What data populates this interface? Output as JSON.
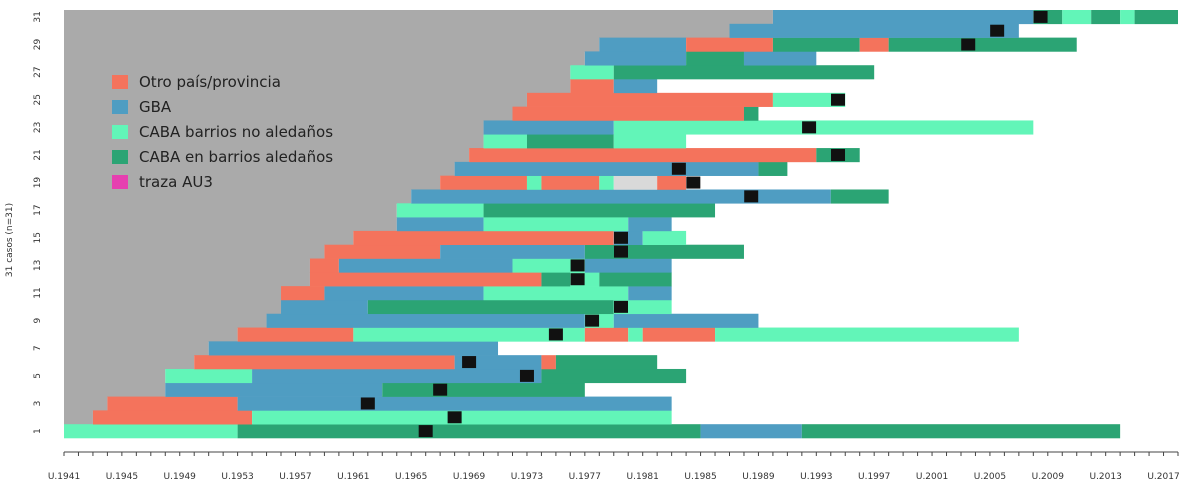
{
  "colors": {
    "background": "#aaaaaa",
    "otro": "#f4735c",
    "gba": "#4f9dc2",
    "caba_no_aled": "#62f5b8",
    "caba_aled": "#2ba474",
    "traza": "#e63fb0",
    "marker": "#111111",
    "unknown": "#d9d9d9"
  },
  "chart_data": {
    "type": "bar",
    "title": "",
    "xlabel": "",
    "ylabel": "31 casos (n=31)",
    "xlim": [
      1941,
      2018
    ],
    "ylim": [
      0.5,
      31.5
    ],
    "x_tick_labels": [
      "U.1941",
      "U.1945",
      "U.1949",
      "U.1953",
      "U.1957",
      "U.1961",
      "U.1965",
      "U.1969",
      "U.1973",
      "U.1977",
      "U.1981",
      "U.1985",
      "U.1989",
      "U.1993",
      "U.1997",
      "U.2001",
      "U.2005",
      "U.2009",
      "U.2013",
      "U.2017"
    ],
    "y_tick_labels": [
      "1",
      "3",
      "5",
      "7",
      "9",
      "11",
      "13",
      "15",
      "17",
      "19",
      "21",
      "23",
      "25",
      "27",
      "29",
      "31"
    ],
    "legend": {
      "position": "top-left",
      "entries": [
        {
          "key": "otro",
          "label": "Otro país/provincia"
        },
        {
          "key": "gba",
          "label": "GBA"
        },
        {
          "key": "caba_no_aled",
          "label": "CABA barrios no aledaños"
        },
        {
          "key": "caba_aled",
          "label": "CABA en barrios aledaños"
        },
        {
          "key": "traza",
          "label": "traza AU3"
        }
      ]
    },
    "rows": [
      {
        "case": 1,
        "start": 1941,
        "segments": [
          [
            "caba_no_aled",
            1941,
            1953
          ],
          [
            "caba_aled",
            1953,
            1985
          ],
          [
            "gba",
            1985,
            1992
          ],
          [
            "caba_aled",
            1992,
            2014
          ]
        ],
        "markers": [
          1966
        ]
      },
      {
        "case": 2,
        "start": 1943,
        "segments": [
          [
            "otro",
            1943,
            1954
          ],
          [
            "caba_no_aled",
            1954,
            1983
          ]
        ],
        "markers": [
          1968
        ]
      },
      {
        "case": 3,
        "start": 1944,
        "segments": [
          [
            "otro",
            1944,
            1953
          ],
          [
            "gba",
            1953,
            1983
          ]
        ],
        "markers": [
          1962
        ]
      },
      {
        "case": 4,
        "start": 1948,
        "segments": [
          [
            "gba",
            1948,
            1963
          ],
          [
            "caba_aled",
            1963,
            1977
          ]
        ],
        "markers": [
          1967
        ]
      },
      {
        "case": 5,
        "start": 1948,
        "segments": [
          [
            "caba_no_aled",
            1948,
            1954
          ],
          [
            "gba",
            1954,
            1974
          ],
          [
            "caba_aled",
            1974,
            1984
          ]
        ],
        "markers": [
          1973
        ]
      },
      {
        "case": 6,
        "start": 1950,
        "segments": [
          [
            "otro",
            1950,
            1968
          ],
          [
            "gba",
            1968,
            1974
          ],
          [
            "otro",
            1974,
            1975
          ],
          [
            "caba_aled",
            1975,
            1982
          ]
        ],
        "markers": [
          1969
        ]
      },
      {
        "case": 7,
        "start": 1951,
        "segments": [
          [
            "gba",
            1951,
            1971
          ]
        ],
        "markers": []
      },
      {
        "case": 8,
        "start": 1953,
        "segments": [
          [
            "otro",
            1953,
            1961
          ],
          [
            "caba_no_aled",
            1961,
            1977
          ],
          [
            "otro",
            1977,
            1980
          ],
          [
            "caba_no_aled",
            1980,
            1981
          ],
          [
            "otro",
            1981,
            1986
          ],
          [
            "caba_no_aled",
            1986,
            2007
          ]
        ],
        "markers": [
          1975
        ]
      },
      {
        "case": 9,
        "start": 1955,
        "segments": [
          [
            "gba",
            1955,
            1977
          ],
          [
            "caba_no_aled",
            1977,
            1979
          ],
          [
            "gba",
            1979,
            1989
          ]
        ],
        "markers": [
          1977.5
        ]
      },
      {
        "case": 10,
        "start": 1956,
        "segments": [
          [
            "gba",
            1956,
            1962
          ],
          [
            "caba_aled",
            1962,
            1979
          ],
          [
            "caba_no_aled",
            1979,
            1983
          ]
        ],
        "markers": [
          1979.5
        ]
      },
      {
        "case": 11,
        "start": 1956,
        "segments": [
          [
            "otro",
            1956,
            1959
          ],
          [
            "gba",
            1959,
            1970
          ],
          [
            "caba_no_aled",
            1970,
            1980
          ],
          [
            "gba",
            1980,
            1983
          ]
        ],
        "markers": []
      },
      {
        "case": 12,
        "start": 1958,
        "segments": [
          [
            "otro",
            1958,
            1974
          ],
          [
            "caba_aled",
            1974,
            1976
          ],
          [
            "caba_no_aled",
            1976,
            1978
          ],
          [
            "caba_aled",
            1978,
            1983
          ]
        ],
        "markers": [
          1976.5
        ]
      },
      {
        "case": 13,
        "start": 1958,
        "segments": [
          [
            "otro",
            1958,
            1960
          ],
          [
            "gba",
            1960,
            1972
          ],
          [
            "caba_no_aled",
            1972,
            1977
          ],
          [
            "gba",
            1977,
            1983
          ]
        ],
        "markers": [
          1976.5
        ]
      },
      {
        "case": 14,
        "start": 1959,
        "segments": [
          [
            "otro",
            1959,
            1967
          ],
          [
            "gba",
            1967,
            1977
          ],
          [
            "caba_aled",
            1977,
            1988
          ]
        ],
        "markers": [
          1979.5
        ]
      },
      {
        "case": 15,
        "start": 1961,
        "segments": [
          [
            "otro",
            1961,
            1979
          ],
          [
            "gba",
            1979,
            1981
          ],
          [
            "caba_no_aled",
            1981,
            1984
          ]
        ],
        "markers": [
          1979.5
        ]
      },
      {
        "case": 16,
        "start": 1964,
        "segments": [
          [
            "gba",
            1964,
            1970
          ],
          [
            "caba_no_aled",
            1970,
            1980
          ],
          [
            "gba",
            1980,
            1983
          ]
        ],
        "markers": []
      },
      {
        "case": 17,
        "start": 1964,
        "segments": [
          [
            "caba_no_aled",
            1964,
            1970
          ],
          [
            "caba_aled",
            1970,
            1986
          ]
        ],
        "markers": []
      },
      {
        "case": 18,
        "start": 1965,
        "segments": [
          [
            "gba",
            1965,
            1994
          ],
          [
            "caba_aled",
            1994,
            1998
          ]
        ],
        "markers": [
          1988.5
        ]
      },
      {
        "case": 19,
        "start": 1967,
        "segments": [
          [
            "otro",
            1967,
            1973
          ],
          [
            "caba_no_aled",
            1973,
            1974
          ],
          [
            "otro",
            1974,
            1978
          ],
          [
            "caba_no_aled",
            1978,
            1979
          ],
          [
            "unknown",
            1979,
            1982
          ],
          [
            "otro",
            1982,
            1984
          ]
        ],
        "markers": [
          1984.5
        ]
      },
      {
        "case": 20,
        "start": 1968,
        "segments": [
          [
            "gba",
            1968,
            1989
          ],
          [
            "caba_aled",
            1989,
            1991
          ]
        ],
        "markers": [
          1983.5
        ]
      },
      {
        "case": 21,
        "start": 1969,
        "segments": [
          [
            "otro",
            1969,
            1993
          ],
          [
            "caba_aled",
            1993,
            1996
          ]
        ],
        "markers": [
          1994.5
        ]
      },
      {
        "case": 22,
        "start": 1970,
        "segments": [
          [
            "caba_no_aled",
            1970,
            1973
          ],
          [
            "caba_aled",
            1973,
            1979
          ],
          [
            "caba_no_aled",
            1979,
            1984
          ]
        ],
        "markers": []
      },
      {
        "case": 23,
        "start": 1970,
        "segments": [
          [
            "gba",
            1970,
            1979
          ],
          [
            "caba_no_aled",
            1979,
            2008
          ]
        ],
        "markers": [
          1992.5
        ]
      },
      {
        "case": 24,
        "start": 1972,
        "segments": [
          [
            "otro",
            1972,
            1988
          ],
          [
            "caba_aled",
            1988,
            1989
          ]
        ],
        "markers": []
      },
      {
        "case": 25,
        "start": 1973,
        "segments": [
          [
            "otro",
            1973,
            1990
          ],
          [
            "caba_no_aled",
            1990,
            1995
          ]
        ],
        "markers": [
          1994.5
        ]
      },
      {
        "case": 26,
        "start": 1976,
        "segments": [
          [
            "otro",
            1976,
            1979
          ],
          [
            "gba",
            1979,
            1982
          ]
        ],
        "markers": []
      },
      {
        "case": 27,
        "start": 1976,
        "segments": [
          [
            "caba_no_aled",
            1976,
            1979
          ],
          [
            "caba_aled",
            1979,
            1997
          ]
        ],
        "markers": []
      },
      {
        "case": 28,
        "start": 1977,
        "segments": [
          [
            "gba",
            1977,
            1984
          ],
          [
            "caba_aled",
            1984,
            1988
          ],
          [
            "gba",
            1988,
            1993
          ]
        ],
        "markers": []
      },
      {
        "case": 29,
        "start": 1978,
        "segments": [
          [
            "gba",
            1978,
            1984
          ],
          [
            "otro",
            1984,
            1990
          ],
          [
            "caba_aled",
            1990,
            1996
          ],
          [
            "otro",
            1996,
            1998
          ],
          [
            "caba_aled",
            1998,
            2011
          ]
        ],
        "markers": [
          2003.5
        ]
      },
      {
        "case": 30,
        "start": 1987,
        "segments": [
          [
            "gba",
            1987,
            2007
          ]
        ],
        "markers": [
          2005.5
        ]
      },
      {
        "case": 31,
        "start": 1990,
        "segments": [
          [
            "gba",
            1990,
            2008
          ],
          [
            "caba_aled",
            2008,
            2010
          ],
          [
            "caba_no_aled",
            2010,
            2012
          ],
          [
            "caba_aled",
            2012,
            2014
          ],
          [
            "caba_no_aled",
            2014,
            2015
          ],
          [
            "caba_aled",
            2015,
            2018
          ]
        ],
        "markers": [
          2008.5
        ]
      }
    ]
  }
}
